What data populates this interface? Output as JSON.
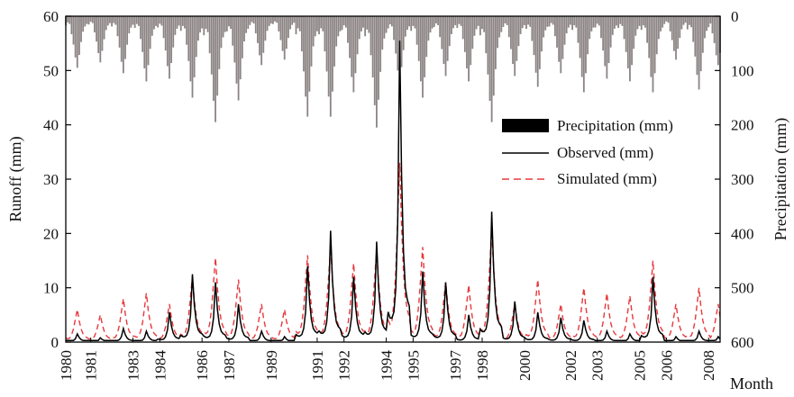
{
  "chart_data": {
    "type": "line",
    "xlabel": "Month",
    "ylabel_left": "Runoff (mm)",
    "ylabel_right": "Precipitation (mm)",
    "ylim_left": [
      0,
      60
    ],
    "ylim_right": [
      0,
      600
    ],
    "right_axis_inverted": true,
    "x_range": [
      "1980-01",
      "2008-06"
    ],
    "left_ticks": [
      "0",
      "10",
      "20",
      "30",
      "40",
      "50",
      "60"
    ],
    "right_ticks": [
      "0",
      "100",
      "200",
      "300",
      "400",
      "500",
      "600"
    ],
    "x_tick_labels": [
      "1980",
      "1981",
      "1983",
      "1984",
      "1986",
      "1987",
      "1989",
      "1991",
      "1992",
      "1994",
      "1995",
      "1997",
      "1998",
      "2000",
      "2002",
      "2003",
      "2005",
      "2006",
      "2008"
    ],
    "x_tick_months": [
      "1980-01",
      "1981-02",
      "1982-12",
      "1984-02",
      "1985-12",
      "1987-02",
      "1988-12",
      "1990-12",
      "1992-02",
      "1993-12",
      "1995-02",
      "1996-12",
      "1998-02",
      "1999-12",
      "2001-12",
      "2003-02",
      "2004-12",
      "2006-02",
      "2007-12"
    ],
    "legend_position": "top-right",
    "grid": false,
    "colors": {
      "precipitation": "#8c8484",
      "observed": "#000000",
      "simulated": "#e8383d"
    },
    "series": [
      {
        "name": "Precipitation (mm)",
        "kind": "bar",
        "annual_peaks": [
          {
            "month": "1980-07",
            "value": 95
          },
          {
            "month": "1981-07",
            "value": 85
          },
          {
            "month": "1982-07",
            "value": 105
          },
          {
            "month": "1983-07",
            "value": 120
          },
          {
            "month": "1984-07",
            "value": 115
          },
          {
            "month": "1985-07",
            "value": 150
          },
          {
            "month": "1986-07",
            "value": 195
          },
          {
            "month": "1987-07",
            "value": 155
          },
          {
            "month": "1988-07",
            "value": 90
          },
          {
            "month": "1989-07",
            "value": 80
          },
          {
            "month": "1990-07",
            "value": 185
          },
          {
            "month": "1991-07",
            "value": 185
          },
          {
            "month": "1992-07",
            "value": 140
          },
          {
            "month": "1993-07",
            "value": 205
          },
          {
            "month": "1994-07",
            "value": 125
          },
          {
            "month": "1995-07",
            "value": 150
          },
          {
            "month": "1996-07",
            "value": 110
          },
          {
            "month": "1997-07",
            "value": 120
          },
          {
            "month": "1998-07",
            "value": 195
          },
          {
            "month": "1999-07",
            "value": 110
          },
          {
            "month": "2000-07",
            "value": 130
          },
          {
            "month": "2001-07",
            "value": 105
          },
          {
            "month": "2002-07",
            "value": 140
          },
          {
            "month": "2003-07",
            "value": 115
          },
          {
            "month": "2004-07",
            "value": 120
          },
          {
            "month": "2005-07",
            "value": 140
          },
          {
            "month": "2006-07",
            "value": 80
          },
          {
            "month": "2007-07",
            "value": 135
          },
          {
            "month": "2008-05",
            "value": 90
          }
        ]
      },
      {
        "name": "Observed (mm)",
        "kind": "line",
        "annual_peaks": [
          {
            "month": "1980-07",
            "value": 1.5
          },
          {
            "month": "1981-07",
            "value": 0.8
          },
          {
            "month": "1982-07",
            "value": 2.5
          },
          {
            "month": "1983-07",
            "value": 2
          },
          {
            "month": "1984-07",
            "value": 5.5
          },
          {
            "month": "1985-07",
            "value": 12.5
          },
          {
            "month": "1986-07",
            "value": 11
          },
          {
            "month": "1987-07",
            "value": 7
          },
          {
            "month": "1988-07",
            "value": 2
          },
          {
            "month": "1989-07",
            "value": 1
          },
          {
            "month": "1990-07",
            "value": 14
          },
          {
            "month": "1991-07",
            "value": 20.5
          },
          {
            "month": "1992-07",
            "value": 12
          },
          {
            "month": "1993-07",
            "value": 18.5
          },
          {
            "month": "1994-07",
            "value": 55.5
          },
          {
            "month": "1995-07",
            "value": 13
          },
          {
            "month": "1996-07",
            "value": 11
          },
          {
            "month": "1997-07",
            "value": 5
          },
          {
            "month": "1998-07",
            "value": 24
          },
          {
            "month": "1999-07",
            "value": 7.5
          },
          {
            "month": "2000-07",
            "value": 5.5
          },
          {
            "month": "2001-07",
            "value": 4.5
          },
          {
            "month": "2002-07",
            "value": 4
          },
          {
            "month": "2003-07",
            "value": 2
          },
          {
            "month": "2004-07",
            "value": 1.5
          },
          {
            "month": "2005-07",
            "value": 12
          },
          {
            "month": "2006-07",
            "value": 1
          },
          {
            "month": "2007-07",
            "value": 2
          },
          {
            "month": "2008-05",
            "value": 1
          }
        ]
      },
      {
        "name": "Simulated (mm)",
        "kind": "line",
        "dashed": true,
        "annual_peaks": [
          {
            "month": "1980-07",
            "value": 6
          },
          {
            "month": "1981-07",
            "value": 5
          },
          {
            "month": "1982-07",
            "value": 8
          },
          {
            "month": "1983-07",
            "value": 9
          },
          {
            "month": "1984-07",
            "value": 7
          },
          {
            "month": "1985-07",
            "value": 12
          },
          {
            "month": "1986-07",
            "value": 15.5
          },
          {
            "month": "1987-07",
            "value": 11.5
          },
          {
            "month": "1988-07",
            "value": 7
          },
          {
            "month": "1989-07",
            "value": 6
          },
          {
            "month": "1990-07",
            "value": 16
          },
          {
            "month": "1991-07",
            "value": 17.5
          },
          {
            "month": "1992-07",
            "value": 14.5
          },
          {
            "month": "1993-07",
            "value": 17
          },
          {
            "month": "1994-07",
            "value": 33
          },
          {
            "month": "1995-07",
            "value": 17.5
          },
          {
            "month": "1996-07",
            "value": 11
          },
          {
            "month": "1997-07",
            "value": 10.5
          },
          {
            "month": "1998-07",
            "value": 20.5
          },
          {
            "month": "1999-07",
            "value": 7
          },
          {
            "month": "2000-07",
            "value": 11.5
          },
          {
            "month": "2001-07",
            "value": 7
          },
          {
            "month": "2002-07",
            "value": 10
          },
          {
            "month": "2003-07",
            "value": 9
          },
          {
            "month": "2004-07",
            "value": 8.5
          },
          {
            "month": "2005-07",
            "value": 15
          },
          {
            "month": "2006-07",
            "value": 7
          },
          {
            "month": "2007-07",
            "value": 10
          },
          {
            "month": "2008-05",
            "value": 7
          }
        ]
      }
    ]
  }
}
